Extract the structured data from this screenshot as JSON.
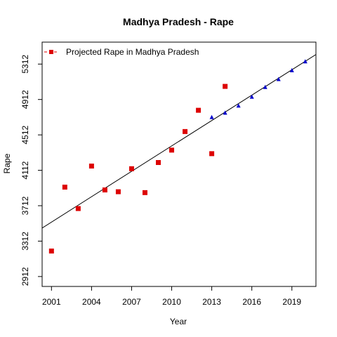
{
  "chart_data": {
    "type": "scatter",
    "title": "Madhya Pradesh  -  Rape",
    "xlabel": "Year",
    "ylabel": "Rape",
    "xlim": [
      2000.3,
      2020.8
    ],
    "ylim": [
      2800,
      5560
    ],
    "x_ticks": [
      2001,
      2004,
      2007,
      2010,
      2013,
      2016,
      2019
    ],
    "y_ticks": [
      2912,
      3312,
      3712,
      4112,
      4512,
      4912,
      5312
    ],
    "grid": false,
    "legend": {
      "position": "top-left",
      "entries": [
        "Projected  Rape  in  Madhya Pradesh"
      ]
    },
    "series": [
      {
        "name": "Projected  Rape  in  Madhya Pradesh",
        "kind": "observed",
        "color": "#dd0000",
        "marker": "square",
        "x": [
          2001,
          2002,
          2003,
          2004,
          2005,
          2006,
          2007,
          2008,
          2009,
          2010,
          2011,
          2012,
          2013,
          2014
        ],
        "y": [
          3200,
          3922,
          3680,
          4160,
          3890,
          3870,
          4130,
          3860,
          4200,
          4340,
          4550,
          4790,
          4300,
          5060
        ]
      },
      {
        "kind": "projected",
        "color": "#0000cc",
        "marker": "triangle",
        "x": [
          2013,
          2014,
          2015,
          2016,
          2017,
          2018,
          2019,
          2020
        ],
        "y": [
          4710,
          4760,
          4840,
          4940,
          5050,
          5140,
          5240,
          5340
        ]
      }
    ],
    "trend_line": {
      "color": "#000000",
      "x": [
        2000.3,
        2020.8
      ],
      "y": [
        3460,
        5420
      ]
    }
  }
}
